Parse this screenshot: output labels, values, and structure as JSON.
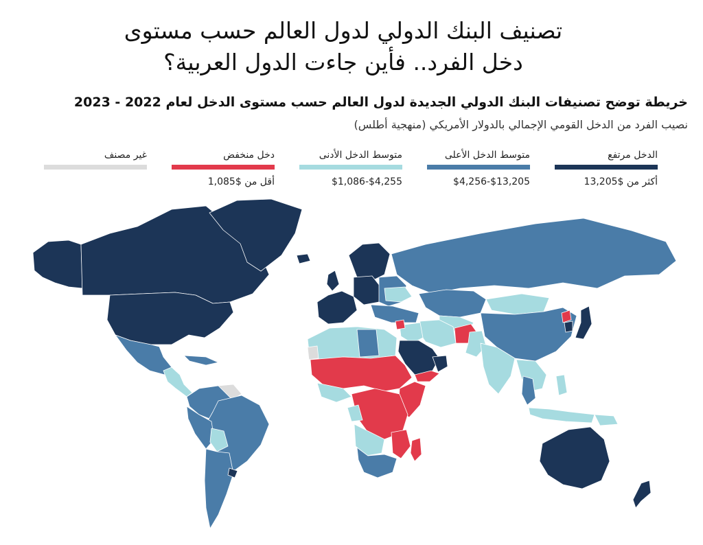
{
  "title_line1": "تصنيف البنك الدولي لدول العالم حسب مستوى",
  "title_line2": "دخل الفرد.. فأين جاءت الدول العربية؟",
  "subtitle": "خريطة توضح تصنيفات البنك الدولي الجديدة لدول العالم حسب مستوى الدخل لعام 2022 - 2023",
  "note": "نصيب الفرد من الدخل القومي الإجمالي بالدولار الأمريكي (منهجية أطلس)",
  "legend": [
    {
      "label": "الدخل مرتفع",
      "range": "أكثر من $13,205",
      "color": "#1c3557"
    },
    {
      "label": "متوسط الدخل الأعلى",
      "range": "$13,205-$4,256",
      "color": "#4a7ca8"
    },
    {
      "label": "متوسط الدخل الأدنى",
      "range": "$4,255-$1,086",
      "color": "#a6dbe0"
    },
    {
      "label": "دخل منخفض",
      "range": "أقل من $1,085",
      "color": "#e23a4b"
    },
    {
      "label": "غير مصنف",
      "range": "",
      "color": "#dcdcdc"
    }
  ],
  "colors": {
    "high": "#1c3557",
    "upper_middle": "#4a7ca8",
    "lower_middle": "#a6dbe0",
    "low": "#e23a4b",
    "unclassified": "#dcdcdc"
  }
}
